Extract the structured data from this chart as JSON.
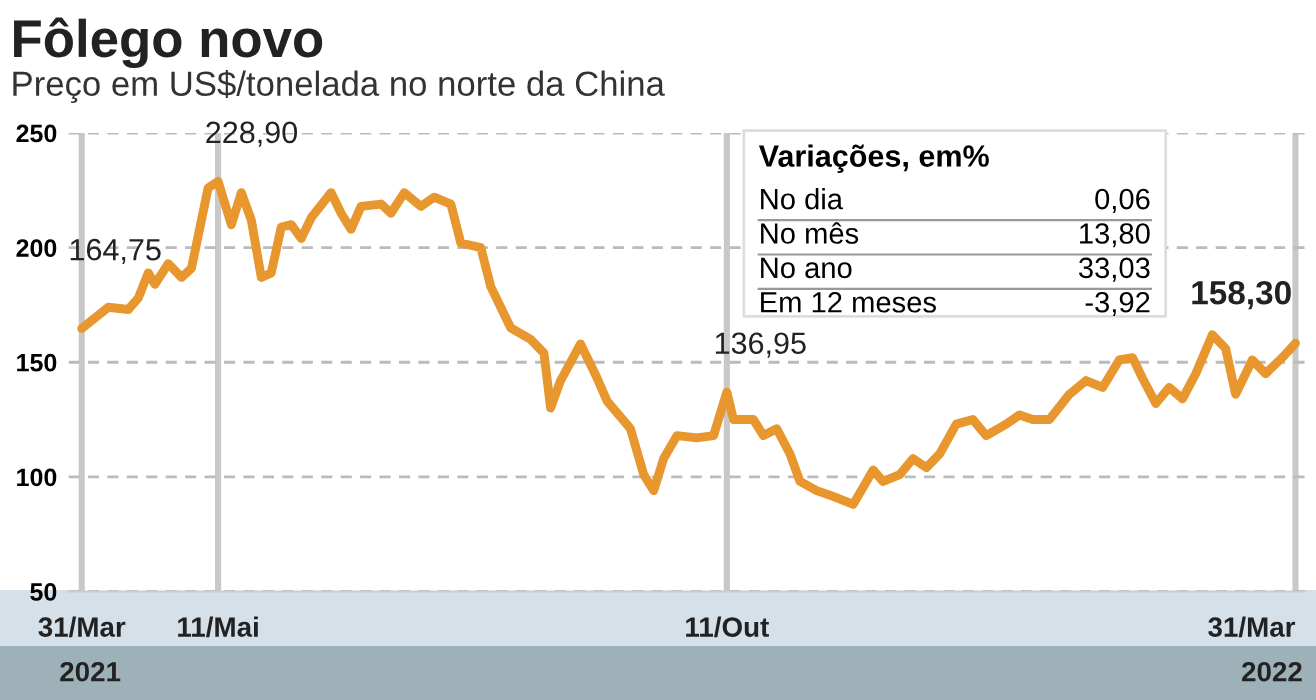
{
  "chart_data": {
    "type": "line",
    "title": "Fôlego novo",
    "subtitle": "Preço em US$/tonelada no norte da China",
    "x": [
      "2021-03-31",
      "2021-04-08",
      "2021-04-14",
      "2021-04-17",
      "2021-04-20",
      "2021-04-22",
      "2021-04-26",
      "2021-04-30",
      "2021-05-03",
      "2021-05-08",
      "2021-05-11",
      "2021-05-15",
      "2021-05-18",
      "2021-05-21",
      "2021-05-24",
      "2021-05-27",
      "2021-05-30",
      "2021-06-02",
      "2021-06-05",
      "2021-06-08",
      "2021-06-14",
      "2021-06-17",
      "2021-06-20",
      "2021-06-23",
      "2021-06-29",
      "2021-07-02",
      "2021-07-06",
      "2021-07-11",
      "2021-07-15",
      "2021-07-20",
      "2021-07-23",
      "2021-07-29",
      "2021-08-01",
      "2021-08-04",
      "2021-08-07",
      "2021-08-13",
      "2021-08-17",
      "2021-08-19",
      "2021-08-22",
      "2021-08-28",
      "2021-09-02",
      "2021-09-05",
      "2021-09-12",
      "2021-09-16",
      "2021-09-19",
      "2021-09-22",
      "2021-09-26",
      "2021-10-02",
      "2021-10-07",
      "2021-10-11",
      "2021-10-13",
      "2021-10-19",
      "2021-10-22",
      "2021-10-26",
      "2021-10-30",
      "2021-11-02",
      "2021-11-07",
      "2021-11-11",
      "2021-11-18",
      "2021-11-24",
      "2021-11-27",
      "2021-12-02",
      "2021-12-06",
      "2021-12-10",
      "2021-12-14",
      "2021-12-19",
      "2021-12-24",
      "2021-12-28",
      "2022-01-03",
      "2022-01-07",
      "2022-01-11",
      "2022-01-16",
      "2022-01-22",
      "2022-01-27",
      "2022-02-01",
      "2022-02-06",
      "2022-02-10",
      "2022-02-13",
      "2022-02-17",
      "2022-02-21",
      "2022-02-25",
      "2022-03-01",
      "2022-03-06",
      "2022-03-10",
      "2022-03-13",
      "2022-03-18",
      "2022-03-22",
      "2022-03-27",
      "2022-03-31"
    ],
    "series": [
      {
        "color": "#e8962e",
        "values": [
          164.75,
          174,
          173,
          178,
          189,
          184,
          193,
          187,
          191,
          226,
          228.9,
          210,
          224,
          212,
          187,
          189,
          209,
          210,
          204,
          213,
          224,
          215,
          208,
          218,
          219,
          215,
          224,
          218,
          222,
          219,
          202,
          200,
          183,
          174,
          165,
          160,
          154,
          130,
          142,
          158,
          143,
          133,
          121,
          101,
          94,
          108,
          118,
          117,
          118,
          136.95,
          125,
          125,
          118,
          121,
          110,
          98,
          94,
          92,
          88,
          103,
          98,
          101,
          108,
          104,
          110,
          123,
          125,
          118,
          123,
          127,
          125,
          125,
          136,
          142,
          139,
          151,
          152,
          143,
          132,
          139,
          134,
          145,
          162,
          156,
          136,
          151,
          145,
          152,
          158.3
        ]
      }
    ],
    "xlim": [
      "2021-03-27",
      "2022-04-03"
    ],
    "xticks": [
      {
        "value": "2021-03-31",
        "label": "31/Mar"
      },
      {
        "value": "2021-05-11",
        "label": "11/Mai"
      },
      {
        "value": "2021-10-11",
        "label": "11/Out"
      },
      {
        "value": "2022-03-31",
        "label": "31/Mar"
      }
    ],
    "ylim": [
      50,
      250
    ],
    "yticks": [
      50,
      100,
      150,
      200,
      250
    ],
    "grid": true,
    "legend": false,
    "line_style": "solid",
    "annotations": [
      {
        "text": "164,75",
        "x": "2021-03-31",
        "y": 164.75
      },
      {
        "text": "228,90",
        "x": "2021-05-11",
        "y": 228.9
      },
      {
        "text": "136,95",
        "x": "2021-10-11",
        "y": 136.95
      },
      {
        "text": "158,30",
        "x": "2022-03-31",
        "y": 158.3
      },
      "Variações, em%",
      "No dia",
      "0,06",
      "No mês",
      "13,80",
      "No ano",
      "33,03",
      "Em 12 meses",
      "-3,92",
      "2021",
      "2022"
    ]
  }
}
